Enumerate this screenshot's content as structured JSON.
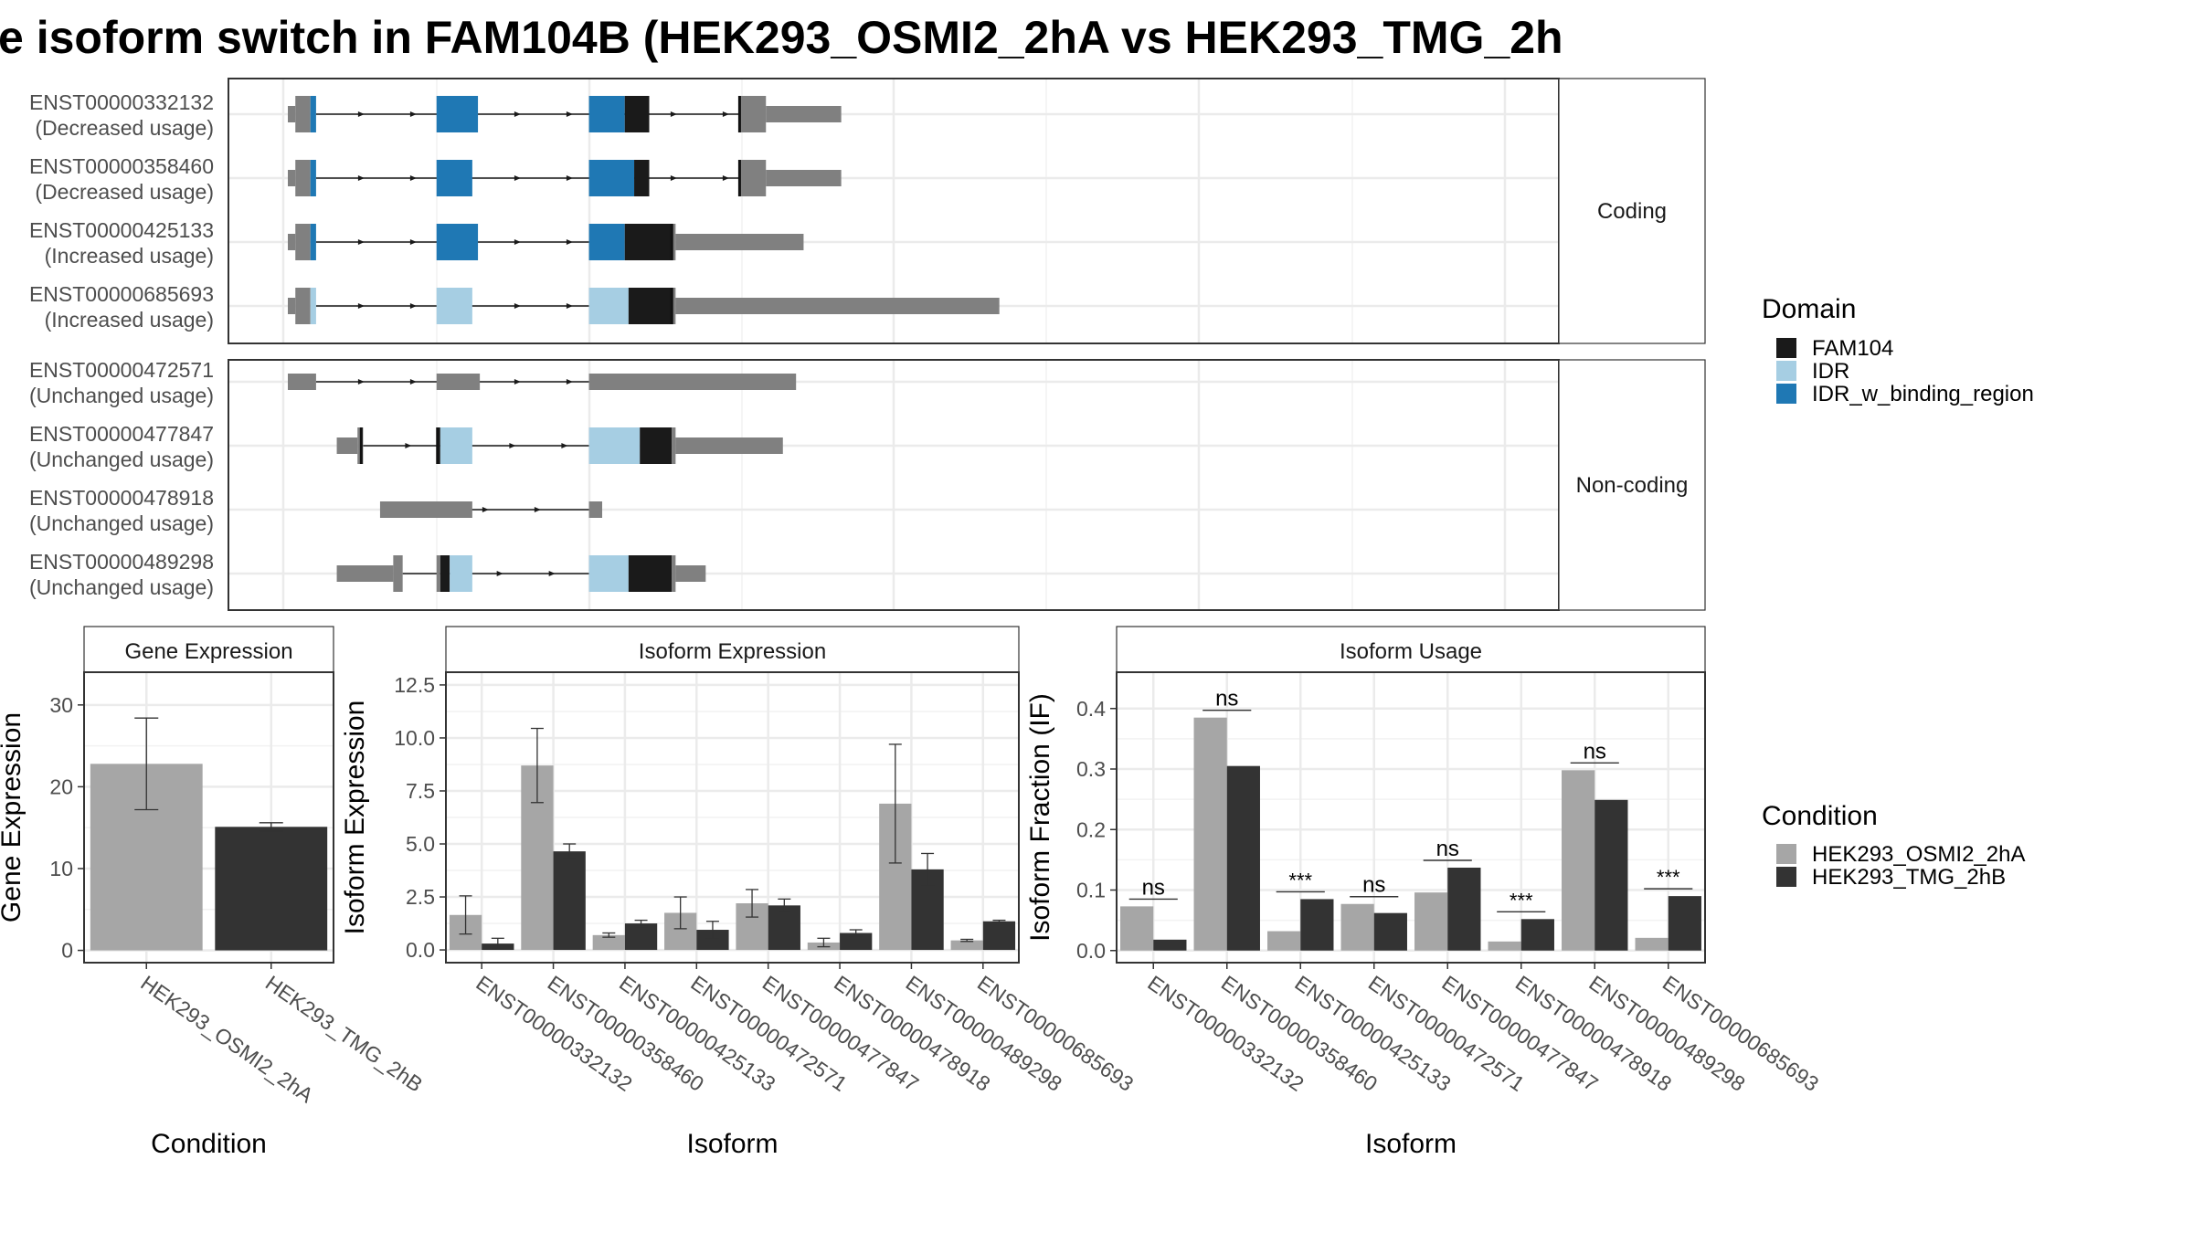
{
  "title": "e isoform switch in FAM104B (HEK293_OSMI2_2hA vs HEK293_TMG_2h",
  "colors": {
    "exon": "#808080",
    "FAM104": "#1a1a1a",
    "IDR": "#a6cee3",
    "IDR_w_binding_region": "#1f78b4",
    "cond_a": "#a6a6a6",
    "cond_b": "#333333"
  },
  "domain_legend": {
    "title": "Domain",
    "items": [
      {
        "label": "FAM104",
        "color": "#1a1a1a"
      },
      {
        "label": "IDR",
        "color": "#a6cee3"
      },
      {
        "label": "IDR_w_binding_region",
        "color": "#1f78b4"
      }
    ]
  },
  "condition_legend": {
    "title": "Condition",
    "items": [
      {
        "label": "HEK293_OSMI2_2hA",
        "color": "#a6a6a6"
      },
      {
        "label": "HEK293_TMG_2hB",
        "color": "#333333"
      }
    ]
  },
  "structure": {
    "groups": [
      {
        "label": "Coding",
        "transcripts": [
          {
            "id": "ENST00000332132",
            "usage": "(Decreased usage)",
            "segments": [
              [
                0,
                0.4,
                "exon"
              ],
              [
                0.4,
                1.2,
                "exon"
              ],
              [
                1.2,
                1.5,
                "IDR_w_binding_region"
              ],
              [
                7.9,
                10.1,
                "IDR_w_binding_region"
              ],
              [
                16.0,
                17.9,
                "IDR_w_binding_region"
              ],
              [
                17.9,
                19.2,
                "FAM104"
              ],
              [
                24.0,
                25.4,
                "exon"
              ],
              [
                25.4,
                29.4,
                "exon"
              ]
            ],
            "heights": [
              0.45,
              1,
              1,
              1,
              1,
              1,
              1,
              0.45
            ],
            "intron": [
              1.5,
              24.0
            ],
            "ticks": [
              24.0
            ]
          },
          {
            "id": "ENST00000358460",
            "usage": "(Decreased usage)",
            "segments": [
              [
                0,
                0.4,
                "exon"
              ],
              [
                0.4,
                1.2,
                "exon"
              ],
              [
                1.2,
                1.5,
                "IDR_w_binding_region"
              ],
              [
                7.9,
                9.8,
                "IDR_w_binding_region"
              ],
              [
                16.0,
                18.4,
                "IDR_w_binding_region"
              ],
              [
                18.4,
                19.2,
                "FAM104"
              ],
              [
                24.0,
                25.4,
                "exon"
              ],
              [
                25.4,
                29.4,
                "exon"
              ]
            ],
            "heights": [
              0.45,
              1,
              1,
              1,
              1,
              1,
              1,
              0.45
            ],
            "intron": [
              1.5,
              24.0
            ],
            "ticks": [
              24.0
            ]
          },
          {
            "id": "ENST00000425133",
            "usage": "(Increased usage)",
            "segments": [
              [
                0,
                0.4,
                "exon"
              ],
              [
                0.4,
                1.2,
                "exon"
              ],
              [
                1.2,
                1.5,
                "IDR_w_binding_region"
              ],
              [
                7.9,
                10.1,
                "IDR_w_binding_region"
              ],
              [
                16.0,
                17.9,
                "IDR_w_binding_region"
              ],
              [
                17.9,
                20.4,
                "FAM104"
              ],
              [
                20.4,
                20.6,
                "exon"
              ],
              [
                20.6,
                27.4,
                "exon"
              ]
            ],
            "heights": [
              0.45,
              1,
              1,
              1,
              1,
              1,
              1,
              0.45
            ],
            "intron": [
              1.5,
              16.0
            ],
            "ticks": [
              20.4
            ]
          },
          {
            "id": "ENST00000685693",
            "usage": "(Increased usage)",
            "segments": [
              [
                0,
                0.4,
                "exon"
              ],
              [
                0.4,
                1.2,
                "exon"
              ],
              [
                1.2,
                1.5,
                "IDR"
              ],
              [
                7.9,
                9.8,
                "IDR"
              ],
              [
                16.0,
                18.1,
                "IDR"
              ],
              [
                18.1,
                20.4,
                "FAM104"
              ],
              [
                20.4,
                20.6,
                "exon"
              ],
              [
                20.6,
                37.8,
                "exon"
              ]
            ],
            "heights": [
              0.45,
              1,
              1,
              1,
              1,
              1,
              1,
              0.45
            ],
            "intron": [
              1.5,
              16.0
            ],
            "ticks": [
              20.4
            ]
          }
        ]
      },
      {
        "label": "Non-coding",
        "transcripts": [
          {
            "id": "ENST00000472571",
            "usage": "(Unchanged usage)",
            "segments": [
              [
                0,
                1.5,
                "exon"
              ],
              [
                7.9,
                10.2,
                "exon"
              ],
              [
                16.0,
                27.0,
                "exon"
              ]
            ],
            "heights": [
              0.45,
              0.45,
              0.45
            ],
            "intron": [
              1.5,
              16.0
            ],
            "ticks": []
          },
          {
            "id": "ENST00000477847",
            "usage": "(Unchanged usage)",
            "segments": [
              [
                2.6,
                3.7,
                "exon"
              ],
              [
                3.7,
                4.0,
                "exon"
              ],
              [
                7.9,
                8.1,
                "FAM104"
              ],
              [
                8.1,
                9.8,
                "IDR"
              ],
              [
                16.0,
                18.7,
                "IDR"
              ],
              [
                18.7,
                20.4,
                "FAM104"
              ],
              [
                20.4,
                20.6,
                "exon"
              ],
              [
                20.6,
                26.3,
                "exon"
              ]
            ],
            "heights": [
              0.45,
              1,
              1,
              1,
              1,
              1,
              1,
              0.45
            ],
            "intron": [
              4.0,
              16.0
            ],
            "ticks": [
              3.9,
              7.95
            ]
          },
          {
            "id": "ENST00000478918",
            "usage": "(Unchanged usage)",
            "segments": [
              [
                4.9,
                8.1,
                "exon"
              ],
              [
                7.9,
                9.8,
                "exon"
              ],
              [
                16.0,
                16.7,
                "exon"
              ]
            ],
            "heights": [
              0.45,
              0.45,
              0.45
            ],
            "intron": [
              8.1,
              16.0
            ],
            "ticks": []
          },
          {
            "id": "ENST00000489298",
            "usage": "(Unchanged usage)",
            "segments": [
              [
                2.6,
                5.6,
                "exon"
              ],
              [
                5.6,
                6.1,
                "exon"
              ],
              [
                7.9,
                8.1,
                "exon"
              ],
              [
                8.1,
                8.6,
                "FAM104"
              ],
              [
                8.6,
                9.8,
                "IDR"
              ],
              [
                16.0,
                18.1,
                "IDR"
              ],
              [
                18.1,
                20.4,
                "FAM104"
              ],
              [
                20.4,
                20.6,
                "exon"
              ],
              [
                20.6,
                22.2,
                "exon"
              ]
            ],
            "heights": [
              0.45,
              1,
              1,
              1,
              1,
              1,
              1,
              1,
              0.45
            ],
            "intron": [
              6.1,
              16.0
            ],
            "ticks": []
          }
        ]
      }
    ]
  },
  "chart_data": [
    {
      "type": "bar",
      "title": "Gene Expression",
      "xlabel": "Condition",
      "ylabel": "Gene Expression",
      "categories": [
        "HEK293_OSMI2_2hA",
        "HEK293_TMG_2hB"
      ],
      "values": [
        22.8,
        15.1
      ],
      "errors": [
        [
          17.2,
          28.4
        ],
        [
          14.6,
          15.6
        ]
      ],
      "ylim": [
        -1.5,
        34
      ],
      "yticks": [
        0,
        10,
        20,
        30
      ],
      "ytick_labels": [
        "0",
        "10",
        "20",
        "30"
      ]
    },
    {
      "type": "bar",
      "title": "Isoform Expression",
      "xlabel": "Isoform",
      "ylabel": "Isoform Expression",
      "categories": [
        "ENST00000332132",
        "ENST00000358460",
        "ENST00000425133",
        "ENST00000472571",
        "ENST00000477847",
        "ENST00000478918",
        "ENST00000489298",
        "ENST00000685693"
      ],
      "series": [
        {
          "name": "HEK293_OSMI2_2hA",
          "values": [
            1.65,
            8.7,
            0.7,
            1.75,
            2.2,
            0.35,
            6.9,
            0.45
          ],
          "errors": [
            [
              0.75,
              2.55
            ],
            [
              6.95,
              10.45
            ],
            [
              0.6,
              0.8
            ],
            [
              1.0,
              2.5
            ],
            [
              1.55,
              2.85
            ],
            [
              0.15,
              0.55
            ],
            [
              4.1,
              9.7
            ],
            [
              0.4,
              0.5
            ]
          ]
        },
        {
          "name": "HEK293_TMG_2hB",
          "values": [
            0.3,
            4.65,
            1.25,
            0.95,
            2.1,
            0.8,
            3.8,
            1.35
          ],
          "errors": [
            [
              0.05,
              0.55
            ],
            [
              4.3,
              5.0
            ],
            [
              1.1,
              1.4
            ],
            [
              0.55,
              1.35
            ],
            [
              1.8,
              2.4
            ],
            [
              0.65,
              0.95
            ],
            [
              3.05,
              4.55
            ],
            [
              1.3,
              1.4
            ]
          ]
        }
      ],
      "ylim": [
        -0.6,
        13.1
      ],
      "yticks": [
        0,
        2.5,
        5,
        7.5,
        10,
        12.5
      ],
      "ytick_labels": [
        "0.0",
        "2.5",
        "5.0",
        "7.5",
        "10.0",
        "12.5"
      ]
    },
    {
      "type": "bar",
      "title": "Isoform Usage",
      "xlabel": "Isoform",
      "ylabel": "Isoform Fraction (IF)",
      "categories": [
        "ENST00000332132",
        "ENST00000358460",
        "ENST00000425133",
        "ENST00000472571",
        "ENST00000477847",
        "ENST00000478918",
        "ENST00000489298",
        "ENST00000685693"
      ],
      "series": [
        {
          "name": "HEK293_OSMI2_2hA",
          "values": [
            0.073,
            0.385,
            0.032,
            0.077,
            0.096,
            0.015,
            0.298,
            0.021
          ]
        },
        {
          "name": "HEK293_TMG_2hB",
          "values": [
            0.018,
            0.305,
            0.085,
            0.062,
            0.137,
            0.052,
            0.249,
            0.09
          ]
        }
      ],
      "significance": [
        "ns",
        "ns",
        "***",
        "ns",
        "ns",
        "***",
        "ns",
        "***"
      ],
      "ylim": [
        -0.02,
        0.46
      ],
      "yticks": [
        0,
        0.1,
        0.2,
        0.3,
        0.4
      ],
      "ytick_labels": [
        "0.0",
        "0.1",
        "0.2",
        "0.3",
        "0.4"
      ]
    }
  ]
}
